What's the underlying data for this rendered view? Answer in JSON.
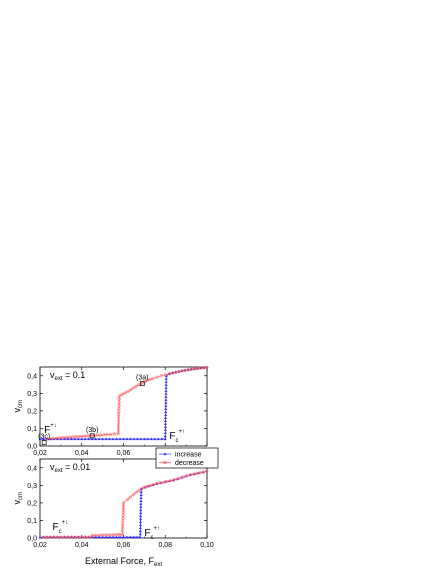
{
  "chart_data": [
    {
      "type": "line",
      "panel_label": "v",
      "panel_label_sub": "ext",
      "panel_label_value": "= 0.1",
      "ylabel": "v",
      "ylabel_sub": "cm",
      "xlim": [
        0.02,
        0.1
      ],
      "ylim": [
        0.0,
        0.45
      ],
      "x_ticks": [
        "0,02",
        "0,04",
        "0,06",
        "0,08"
      ],
      "y_ticks": [
        "0,0",
        "0,1",
        "0,2",
        "0,3",
        "0,4"
      ],
      "series": [
        {
          "name": "increase",
          "color": "#3333ff",
          "marker": "triangle",
          "x": [
            0.02,
            0.03,
            0.04,
            0.05,
            0.06,
            0.07,
            0.075,
            0.08,
            0.0805,
            0.082,
            0.085,
            0.088,
            0.091,
            0.094,
            0.097,
            0.1
          ],
          "y": [
            0.04,
            0.04,
            0.04,
            0.04,
            0.04,
            0.04,
            0.04,
            0.04,
            0.4,
            0.412,
            0.42,
            0.428,
            0.434,
            0.44,
            0.444,
            0.447
          ]
        },
        {
          "name": "decrease",
          "color": "#ff5555",
          "marker": "circle",
          "x": [
            0.1,
            0.094,
            0.088,
            0.082,
            0.078,
            0.074,
            0.07,
            0.066,
            0.062,
            0.058,
            0.0575,
            0.052,
            0.046,
            0.04,
            0.034,
            0.028,
            0.024,
            0.022
          ],
          "y": [
            0.447,
            0.44,
            0.428,
            0.412,
            0.4,
            0.385,
            0.365,
            0.34,
            0.31,
            0.285,
            0.07,
            0.065,
            0.06,
            0.055,
            0.05,
            0.045,
            0.04,
            0.03
          ]
        }
      ],
      "annotations": [
        {
          "text": "(3a)",
          "x": 0.069,
          "y": 0.355
        },
        {
          "text": "(3b)",
          "x": 0.045,
          "y": 0.058
        },
        {
          "text": "(3c)",
          "x": 0.022,
          "y": 0.02
        }
      ],
      "critical_labels": [
        {
          "text": "F",
          "sup": "+↓",
          "x": 0.022,
          "y": 0.075
        },
        {
          "text": "F",
          "sub": "c",
          "sup": "+↑",
          "x": 0.082,
          "y": 0.04
        }
      ]
    },
    {
      "type": "line",
      "panel_label": "v",
      "panel_label_sub": "ext",
      "panel_label_value": "= 0.01",
      "ylabel": "v",
      "ylabel_sub": "cm",
      "xlabel": "External Force,  F",
      "xlabel_sub": "ext",
      "xlim": [
        0.02,
        0.1
      ],
      "ylim": [
        0.0,
        0.45
      ],
      "x_ticks": [
        "0,02",
        "0,04",
        "0,06",
        "0,08",
        "0,10"
      ],
      "y_ticks": [
        "0,0",
        "0,1",
        "0,2",
        "0,3",
        "0,4"
      ],
      "legend": {
        "position": "top-right",
        "entries": [
          "increase",
          "decrease"
        ]
      },
      "series": [
        {
          "name": "increase",
          "color": "#3333ff",
          "marker": "triangle",
          "x": [
            0.02,
            0.03,
            0.04,
            0.05,
            0.06,
            0.065,
            0.068,
            0.0685,
            0.072,
            0.076,
            0.08,
            0.084,
            0.088,
            0.092,
            0.096,
            0.1
          ],
          "y": [
            0.005,
            0.005,
            0.005,
            0.005,
            0.005,
            0.005,
            0.005,
            0.28,
            0.295,
            0.31,
            0.32,
            0.33,
            0.345,
            0.36,
            0.37,
            0.38
          ]
        },
        {
          "name": "decrease",
          "color": "#ff5555",
          "marker": "circle",
          "x": [
            0.1,
            0.092,
            0.084,
            0.076,
            0.07,
            0.066,
            0.062,
            0.06,
            0.0595,
            0.055,
            0.05,
            0.045,
            0.0445,
            0.04,
            0.035,
            0.03,
            0.025,
            0.02
          ],
          "y": [
            0.38,
            0.36,
            0.33,
            0.31,
            0.29,
            0.26,
            0.22,
            0.2,
            0.02,
            0.018,
            0.017,
            0.015,
            0.005,
            0.005,
            0.005,
            0.005,
            0.005,
            0.005
          ]
        }
      ],
      "critical_labels": [
        {
          "text": "F",
          "sub": "c",
          "sup": "+↓",
          "x": 0.026,
          "y": 0.045
        },
        {
          "text": "F",
          "sub": "c",
          "sup": "+↑",
          "x": 0.07,
          "y": 0.01
        }
      ]
    }
  ]
}
